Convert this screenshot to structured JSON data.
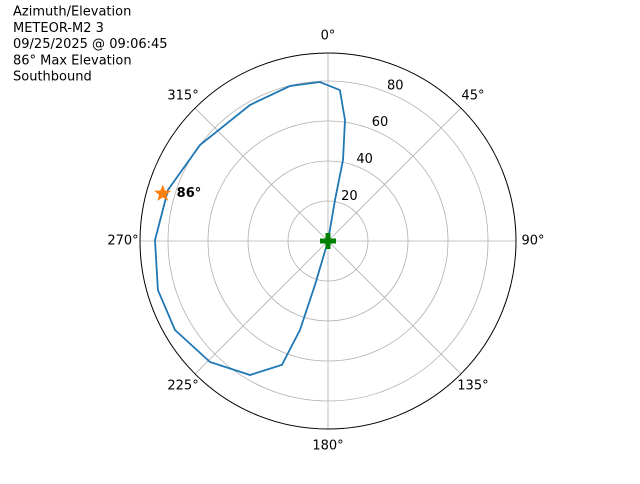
{
  "chart_data": {
    "type": "polar",
    "title": [
      "Azimuth/Elevation",
      "METEOR-M2 3",
      "09/25/2025 @ 09:06:45",
      "86° Max Elevation",
      "Southbound"
    ],
    "theta_zero": "N",
    "theta_direction": "clockwise",
    "ylim": [
      0,
      94
    ],
    "yticks": [
      20,
      40,
      60,
      80
    ],
    "xticks": [
      {
        "value": 0,
        "label": "0°"
      },
      {
        "value": 45,
        "label": "45°"
      },
      {
        "value": 90,
        "label": "90°"
      },
      {
        "value": 135,
        "label": "135°"
      },
      {
        "value": 180,
        "label": "180°"
      },
      {
        "value": 225,
        "label": "225°"
      },
      {
        "value": 270,
        "label": "270°"
      },
      {
        "value": 315,
        "label": "315°"
      }
    ],
    "grid": true,
    "series": [
      {
        "color": "#1f77b4",
        "theta": [
          0,
          9.7,
          10.5,
          8.0,
          4.5,
          357.1,
          346.2,
          330.2,
          306.9,
          287.7,
          270.3,
          253.9,
          239.8,
          224.3,
          210.2,
          200.4,
          197.5,
          196.5,
          0
        ],
        "r": [
          0,
          20.8,
          41.2,
          61.1,
          75.7,
          79.6,
          79.8,
          78.4,
          80,
          84,
          86.5,
          88.5,
          88.5,
          84.5,
          77.5,
          66.1,
          46.6,
          22.9,
          0
        ]
      }
    ],
    "markers": [
      {
        "shape": "star",
        "color": "#ff7f0e",
        "theta": 286,
        "r": 86,
        "label": "86°"
      },
      {
        "shape": "plus",
        "color": "#008000",
        "theta": 0,
        "r": 0
      }
    ]
  }
}
